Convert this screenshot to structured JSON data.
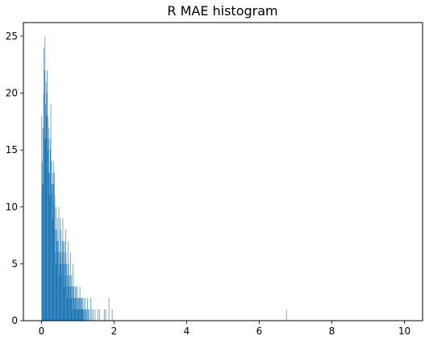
{
  "chart_data": {
    "type": "bar",
    "title": "R MAE histogram",
    "xlabel": "",
    "ylabel": "",
    "xlim": [
      -0.5,
      10.5
    ],
    "ylim": [
      0,
      26.2
    ],
    "grid": false,
    "bar_color": "#1f77b4",
    "xticks": [
      0,
      2,
      4,
      6,
      8,
      10
    ],
    "yticks": [
      0,
      5,
      10,
      15,
      20,
      25
    ],
    "x_tick_labels": [
      "0",
      "2",
      "4",
      "6",
      "8",
      "10"
    ],
    "y_tick_labels": [
      "0",
      "5",
      "10",
      "15",
      "20",
      "25"
    ],
    "bin_width": 0.01,
    "bins": [
      {
        "x": 0.0,
        "count": 18
      },
      {
        "x": 0.01,
        "count": 14
      },
      {
        "x": 0.02,
        "count": 12
      },
      {
        "x": 0.03,
        "count": 17
      },
      {
        "x": 0.04,
        "count": 12
      },
      {
        "x": 0.05,
        "count": 20
      },
      {
        "x": 0.06,
        "count": 24
      },
      {
        "x": 0.07,
        "count": 16
      },
      {
        "x": 0.08,
        "count": 22
      },
      {
        "x": 0.09,
        "count": 25
      },
      {
        "x": 0.1,
        "count": 19
      },
      {
        "x": 0.11,
        "count": 16
      },
      {
        "x": 0.12,
        "count": 21
      },
      {
        "x": 0.13,
        "count": 18
      },
      {
        "x": 0.14,
        "count": 20
      },
      {
        "x": 0.15,
        "count": 22
      },
      {
        "x": 0.16,
        "count": 15
      },
      {
        "x": 0.17,
        "count": 18
      },
      {
        "x": 0.18,
        "count": 16
      },
      {
        "x": 0.19,
        "count": 13
      },
      {
        "x": 0.2,
        "count": 17
      },
      {
        "x": 0.21,
        "count": 13
      },
      {
        "x": 0.22,
        "count": 11
      },
      {
        "x": 0.23,
        "count": 15
      },
      {
        "x": 0.24,
        "count": 16
      },
      {
        "x": 0.25,
        "count": 19
      },
      {
        "x": 0.26,
        "count": 12
      },
      {
        "x": 0.27,
        "count": 14
      },
      {
        "x": 0.28,
        "count": 11
      },
      {
        "x": 0.29,
        "count": 12
      },
      {
        "x": 0.3,
        "count": 9
      },
      {
        "x": 0.31,
        "count": 13
      },
      {
        "x": 0.32,
        "count": 14
      },
      {
        "x": 0.33,
        "count": 12
      },
      {
        "x": 0.34,
        "count": 10
      },
      {
        "x": 0.35,
        "count": 13
      },
      {
        "x": 0.36,
        "count": 11
      },
      {
        "x": 0.37,
        "count": 8
      },
      {
        "x": 0.38,
        "count": 6
      },
      {
        "x": 0.39,
        "count": 10
      },
      {
        "x": 0.4,
        "count": 5
      },
      {
        "x": 0.41,
        "count": 8
      },
      {
        "x": 0.42,
        "count": 7
      },
      {
        "x": 0.43,
        "count": 9
      },
      {
        "x": 0.44,
        "count": 6
      },
      {
        "x": 0.45,
        "count": 7
      },
      {
        "x": 0.46,
        "count": 5
      },
      {
        "x": 0.47,
        "count": 10
      },
      {
        "x": 0.48,
        "count": 6
      },
      {
        "x": 0.49,
        "count": 4
      },
      {
        "x": 0.5,
        "count": 9
      },
      {
        "x": 0.51,
        "count": 5
      },
      {
        "x": 0.52,
        "count": 6
      },
      {
        "x": 0.53,
        "count": 8
      },
      {
        "x": 0.54,
        "count": 5
      },
      {
        "x": 0.55,
        "count": 4
      },
      {
        "x": 0.56,
        "count": 7
      },
      {
        "x": 0.57,
        "count": 6
      },
      {
        "x": 0.58,
        "count": 9
      },
      {
        "x": 0.59,
        "count": 5
      },
      {
        "x": 0.6,
        "count": 7
      },
      {
        "x": 0.61,
        "count": 6
      },
      {
        "x": 0.62,
        "count": 3
      },
      {
        "x": 0.63,
        "count": 7
      },
      {
        "x": 0.64,
        "count": 5
      },
      {
        "x": 0.65,
        "count": 4
      },
      {
        "x": 0.66,
        "count": 8
      },
      {
        "x": 0.67,
        "count": 6
      },
      {
        "x": 0.68,
        "count": 3
      },
      {
        "x": 0.69,
        "count": 5
      },
      {
        "x": 0.7,
        "count": 2
      },
      {
        "x": 0.71,
        "count": 4
      },
      {
        "x": 0.72,
        "count": 7
      },
      {
        "x": 0.73,
        "count": 3
      },
      {
        "x": 0.74,
        "count": 5
      },
      {
        "x": 0.75,
        "count": 4
      },
      {
        "x": 0.76,
        "count": 3
      },
      {
        "x": 0.77,
        "count": 2
      },
      {
        "x": 0.78,
        "count": 4
      },
      {
        "x": 0.79,
        "count": 6
      },
      {
        "x": 0.8,
        "count": 3
      },
      {
        "x": 0.81,
        "count": 2
      },
      {
        "x": 0.82,
        "count": 4
      },
      {
        "x": 0.83,
        "count": 1
      },
      {
        "x": 0.84,
        "count": 3
      },
      {
        "x": 0.85,
        "count": 2
      },
      {
        "x": 0.86,
        "count": 5
      },
      {
        "x": 0.87,
        "count": 3
      },
      {
        "x": 0.88,
        "count": 2
      },
      {
        "x": 0.89,
        "count": 3
      },
      {
        "x": 0.9,
        "count": 2
      },
      {
        "x": 0.91,
        "count": 1
      },
      {
        "x": 0.92,
        "count": 3
      },
      {
        "x": 0.93,
        "count": 2
      },
      {
        "x": 0.94,
        "count": 1
      },
      {
        "x": 0.95,
        "count": 3
      },
      {
        "x": 0.96,
        "count": 2
      },
      {
        "x": 0.97,
        "count": 1
      },
      {
        "x": 0.98,
        "count": 3
      },
      {
        "x": 0.99,
        "count": 2
      },
      {
        "x": 1.0,
        "count": 1
      },
      {
        "x": 1.01,
        "count": 2
      },
      {
        "x": 1.02,
        "count": 1
      },
      {
        "x": 1.03,
        "count": 2
      },
      {
        "x": 1.04,
        "count": 1
      },
      {
        "x": 1.05,
        "count": 3
      },
      {
        "x": 1.06,
        "count": 2
      },
      {
        "x": 1.07,
        "count": 1
      },
      {
        "x": 1.08,
        "count": 2
      },
      {
        "x": 1.09,
        "count": 1
      },
      {
        "x": 1.1,
        "count": 2
      },
      {
        "x": 1.11,
        "count": 1
      },
      {
        "x": 1.12,
        "count": 2
      },
      {
        "x": 1.13,
        "count": 1
      },
      {
        "x": 1.14,
        "count": 1
      },
      {
        "x": 1.16,
        "count": 2
      },
      {
        "x": 1.18,
        "count": 1
      },
      {
        "x": 1.2,
        "count": 2
      },
      {
        "x": 1.22,
        "count": 1
      },
      {
        "x": 1.24,
        "count": 1
      },
      {
        "x": 1.26,
        "count": 2
      },
      {
        "x": 1.28,
        "count": 1
      },
      {
        "x": 1.3,
        "count": 1
      },
      {
        "x": 1.35,
        "count": 2
      },
      {
        "x": 1.38,
        "count": 1
      },
      {
        "x": 1.42,
        "count": 1
      },
      {
        "x": 1.47,
        "count": 1
      },
      {
        "x": 1.55,
        "count": 1
      },
      {
        "x": 1.6,
        "count": 1
      },
      {
        "x": 1.72,
        "count": 1
      },
      {
        "x": 1.76,
        "count": 1
      },
      {
        "x": 1.85,
        "count": 2
      },
      {
        "x": 1.94,
        "count": 1
      },
      {
        "x": 6.74,
        "count": 1
      }
    ]
  }
}
